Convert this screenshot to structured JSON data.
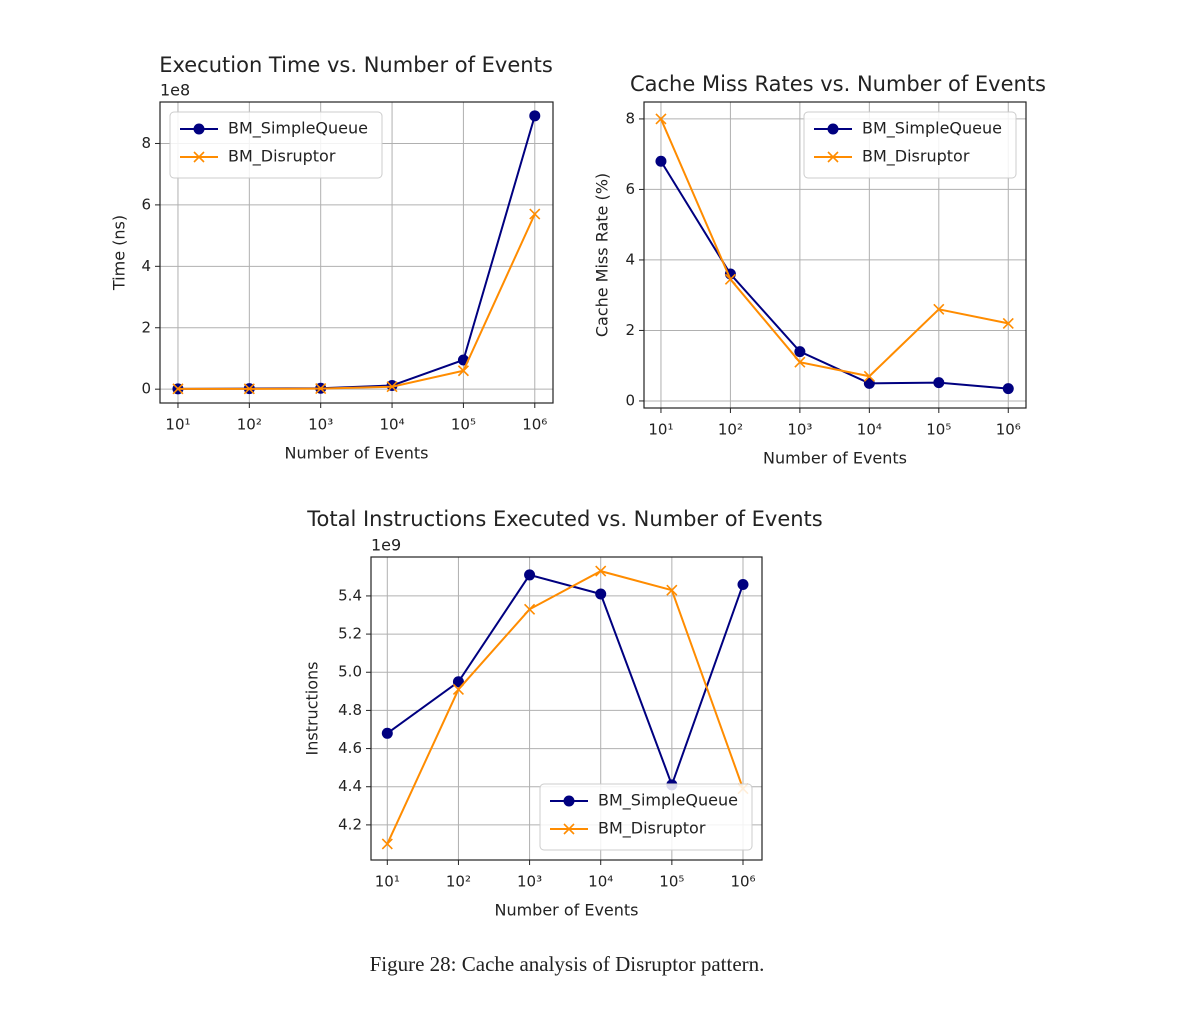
{
  "chart_data": [
    {
      "type": "line",
      "title": "Execution Time vs. Number of Events",
      "xlabel": "Number of Events",
      "ylabel": "Time (ns)",
      "offset_label": "1e8",
      "x": [
        10,
        100,
        1000,
        10000,
        100000,
        1000000
      ],
      "xscale": "log",
      "xlim": [
        5.6,
        1800000
      ],
      "xticks": [
        {
          "value": 10,
          "label": "10¹"
        },
        {
          "value": 100,
          "label": "10²"
        },
        {
          "value": 1000,
          "label": "10³"
        },
        {
          "value": 10000,
          "label": "10⁴"
        },
        {
          "value": 100000,
          "label": "10⁵"
        },
        {
          "value": 1000000,
          "label": "10⁶"
        }
      ],
      "ylim": [
        -0.45,
        9.35
      ],
      "yticks": [
        0,
        2,
        4,
        6,
        8
      ],
      "grid": true,
      "legend": "upper left",
      "series": [
        {
          "name": "BM_SimpleQueue",
          "color": "#000080",
          "marker": "o",
          "values": [
            0.01,
            0.02,
            0.03,
            0.12,
            0.95,
            8.9
          ]
        },
        {
          "name": "BM_Disruptor",
          "color": "#ff8c00",
          "marker": "x",
          "values": [
            0.01,
            0.01,
            0.02,
            0.08,
            0.6,
            5.7
          ]
        }
      ]
    },
    {
      "type": "line",
      "title": "Cache Miss Rates vs. Number of Events",
      "xlabel": "Number of Events",
      "ylabel": "Cache Miss Rate (%)",
      "x": [
        10,
        100,
        1000,
        10000,
        100000,
        1000000
      ],
      "xscale": "log",
      "xlim": [
        5.7,
        1800000
      ],
      "xticks": [
        {
          "value": 10,
          "label": "10¹"
        },
        {
          "value": 100,
          "label": "10²"
        },
        {
          "value": 1000,
          "label": "10³"
        },
        {
          "value": 10000,
          "label": "10⁴"
        },
        {
          "value": 100000,
          "label": "10⁵"
        },
        {
          "value": 1000000,
          "label": "10⁶"
        }
      ],
      "ylim": [
        -0.2,
        8.48
      ],
      "yticks": [
        0,
        2,
        4,
        6,
        8
      ],
      "grid": true,
      "legend": "upper right",
      "series": [
        {
          "name": "BM_SimpleQueue",
          "color": "#000080",
          "marker": "o",
          "values": [
            6.8,
            3.6,
            1.4,
            0.5,
            0.52,
            0.35
          ]
        },
        {
          "name": "BM_Disruptor",
          "color": "#ff8c00",
          "marker": "x",
          "values": [
            8.0,
            3.45,
            1.1,
            0.7,
            2.6,
            2.2
          ]
        }
      ]
    },
    {
      "type": "line",
      "title": "Total Instructions Executed vs. Number of Events",
      "xlabel": "Number of Events",
      "ylabel": "Instructions",
      "offset_label": "1e9",
      "x": [
        10,
        100,
        1000,
        10000,
        100000,
        1000000
      ],
      "xscale": "log",
      "xlim": [
        5.9,
        1850000
      ],
      "xticks": [
        {
          "value": 10,
          "label": "10¹"
        },
        {
          "value": 100,
          "label": "10²"
        },
        {
          "value": 1000,
          "label": "10³"
        },
        {
          "value": 10000,
          "label": "10⁴"
        },
        {
          "value": 100000,
          "label": "10⁵"
        },
        {
          "value": 1000000,
          "label": "10⁶"
        }
      ],
      "ylim": [
        4.016,
        5.604
      ],
      "yticks": [
        4.2,
        4.4,
        4.6,
        4.8,
        {
          "value": 5,
          "label": "5.0"
        },
        5.2,
        5.4
      ],
      "grid": true,
      "legend": "lower right",
      "series": [
        {
          "name": "BM_SimpleQueue",
          "color": "#000080",
          "marker": "o",
          "values": [
            4.68,
            4.95,
            5.51,
            5.41,
            4.41,
            5.46
          ]
        },
        {
          "name": "BM_Disruptor",
          "color": "#ff8c00",
          "marker": "x",
          "values": [
            4.1,
            4.91,
            5.33,
            5.53,
            5.43,
            4.39
          ]
        }
      ]
    }
  ],
  "caption": "Figure 28: Cache analysis of Disruptor pattern."
}
